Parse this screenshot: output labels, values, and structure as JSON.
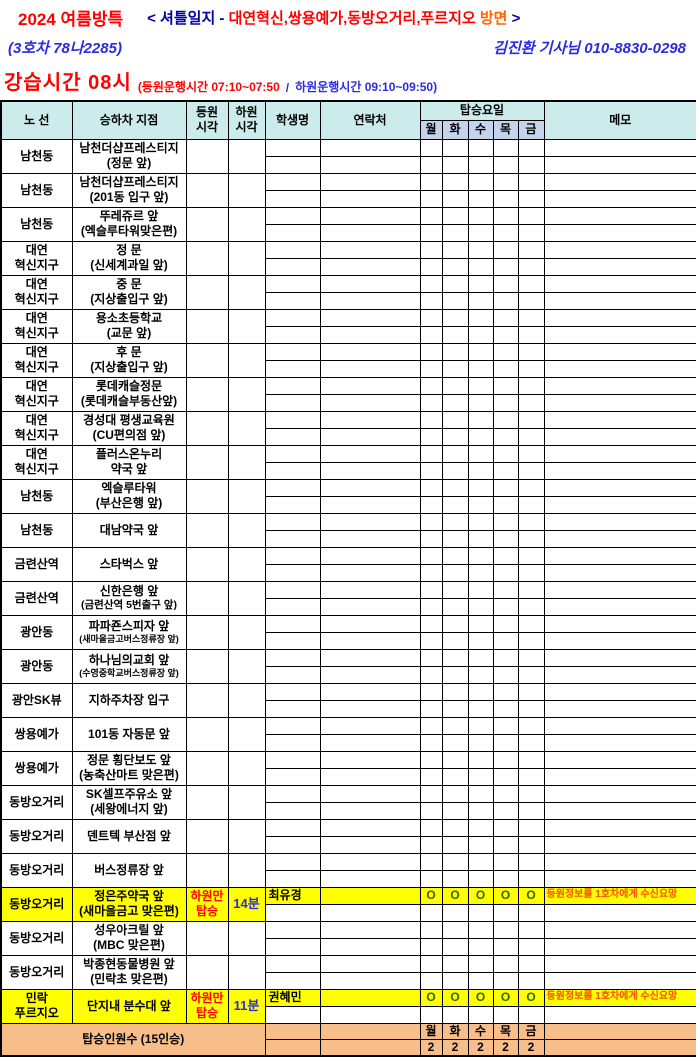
{
  "title": {
    "season": "2024 여름방특",
    "bracket_open": "< ",
    "log_label": "셔틀일지 - ",
    "route_red": "대연혁신,쌍용예가,동방오거리,푸르지오",
    "route_suffix": " 방면",
    "bracket_close": " >",
    "bus_no": "(3호차 78나2285)",
    "driver": "김진환 기사님  010-8830-0298"
  },
  "schedule": {
    "class_time": "강습시간  08시",
    "morning": "(등원운행시간 07:10~07:50",
    "slash": "/",
    "return_time": "하원운행시간 09:10~09:50)"
  },
  "colors": {
    "header_bg": "#cbeceb",
    "day_header_bg": "#c5d3ed",
    "highlight_yellow": "#ffff00",
    "summary_peach": "#f7be8a",
    "title_red": "#ff0000",
    "title_orange": "#ff6600",
    "title_blue": "#2b2bdf",
    "title_navy": "#0000a8",
    "memo_red": "#ff4f00",
    "mark_green": "#336600"
  },
  "table": {
    "headers": {
      "route": "노 선",
      "stop": "승하차 지점",
      "pickup_time": "등원\n시각",
      "dropoff_time": "하원\n시각",
      "student": "학생명",
      "contact": "연락처",
      "boarding_days": "탑승요일",
      "memo": "메모"
    },
    "day_labels": [
      "월",
      "화",
      "수",
      "목",
      "금"
    ],
    "rows": [
      {
        "route": "남천동",
        "stop_lines": [
          "남천더샵프레스티지",
          "(정문 앞)"
        ]
      },
      {
        "route": "남천동",
        "stop_lines": [
          "남천더샵프레스티지",
          "(201동 입구 앞)"
        ]
      },
      {
        "route": "남천동",
        "stop_lines": [
          "뚜레쥬르 앞",
          "(엑슬루타워맞은편)"
        ]
      },
      {
        "route": "대연\n혁신지구",
        "stop_lines": [
          "정 문",
          "(신세계과일 앞)"
        ]
      },
      {
        "route": "대연\n혁신지구",
        "stop_lines": [
          "중 문",
          "(지상출입구 앞)"
        ]
      },
      {
        "route": "대연\n혁신지구",
        "stop_lines": [
          "용소초등학교",
          "(교문 앞)"
        ]
      },
      {
        "route": "대연\n혁신지구",
        "stop_lines": [
          "후 문",
          "(지상출입구 앞)"
        ]
      },
      {
        "route": "대연\n혁신지구",
        "stop_lines": [
          "롯데캐슬정문",
          "(롯데캐슬부동산앞)"
        ]
      },
      {
        "route": "대연\n혁신지구",
        "stop_lines": [
          "경성대 평생교육원",
          "(CU편의점 앞)"
        ]
      },
      {
        "route": "대연\n혁신지구",
        "stop_lines": [
          "플러스온누리",
          "약국 앞"
        ]
      },
      {
        "route": "남천동",
        "stop_lines": [
          "엑슬루타워",
          "(부산은행 앞)"
        ]
      },
      {
        "route": "남천동",
        "stop_lines": [
          "대남약국 앞"
        ]
      },
      {
        "route": "금련산역",
        "stop_lines": [
          "스타벅스 앞"
        ]
      },
      {
        "route": "금련산역",
        "stop_lines": [
          "신한은행 앞",
          "(금련산역 5번출구 앞)"
        ],
        "stop2_size": "mid"
      },
      {
        "route": "광안동",
        "stop_lines": [
          "파파죤스피자 앞",
          "(새마을금고버스정류장 앞)"
        ],
        "stop2_size": "small"
      },
      {
        "route": "광안동",
        "stop_lines": [
          "하나님의교회 앞",
          "(수영중학교버스정류장 앞)"
        ],
        "stop2_size": "small"
      },
      {
        "route": "광안SK뷰",
        "stop_lines": [
          "지하주차장 입구"
        ]
      },
      {
        "route": "쌍용예가",
        "stop_lines": [
          "101동 자동문 앞"
        ]
      },
      {
        "route": "쌍용예가",
        "stop_lines": [
          "정문 횡단보도 앞",
          "(농축산마트 맞은편)"
        ]
      },
      {
        "route": "동방오거리",
        "stop_lines": [
          "SK셀프주유소 앞",
          "(세왕에너지 앞)"
        ]
      },
      {
        "route": "동방오거리",
        "stop_lines": [
          "덴트텍 부산점 앞"
        ]
      },
      {
        "route": "동방오거리",
        "stop_lines": [
          "버스정류장 앞"
        ]
      },
      {
        "route": "동방오거리",
        "stop_lines": [
          "정은주약국 앞",
          "(새마을금고 맞은편)"
        ],
        "highlight": true,
        "pickup": "하원만\n탑승",
        "dropoff": "14분",
        "student": "최유경",
        "day_marks": [
          "O",
          "O",
          "O",
          "O",
          "O"
        ],
        "memo": "등원정보를 1호차에게 수신요망"
      },
      {
        "route": "동방오거리",
        "stop_lines": [
          "성우아크릴 앞",
          "(MBC 맞은편)"
        ]
      },
      {
        "route": "동방오거리",
        "stop_lines": [
          "박종현동물병원 앞",
          "(민락초 맞은편)"
        ]
      },
      {
        "route": "민락\n푸르지오",
        "stop_lines": [
          "단지내 분수대 앞"
        ],
        "highlight": true,
        "pickup": "하원만\n탑승",
        "dropoff": "11분",
        "student": "권혜민",
        "day_marks": [
          "O",
          "O",
          "O",
          "O",
          "O"
        ],
        "memo": "등원정보를 1호차에게 수신요망"
      }
    ],
    "summary": {
      "label": "탑승인원수 (15인승)",
      "day_labels": [
        "월",
        "화",
        "수",
        "목",
        "금"
      ],
      "counts": [
        "2",
        "2",
        "2",
        "2",
        "2"
      ]
    }
  }
}
